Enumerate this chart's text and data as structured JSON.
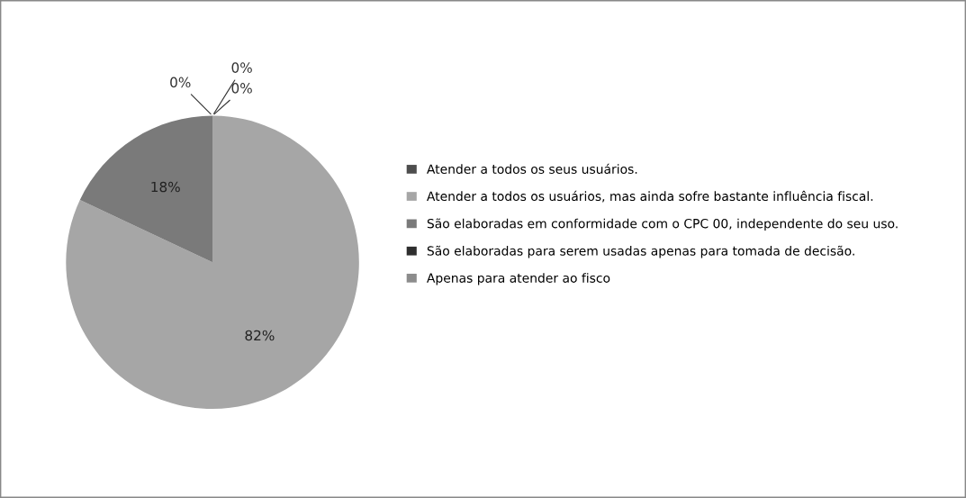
{
  "chart_data": {
    "type": "pie",
    "categories": [
      "Atender a todos os seus usuários.",
      "Atender a todos os usuários, mas ainda sofre bastante influência fiscal.",
      "São elaboradas em conformidade com o CPC 00, independente do seu uso.",
      "São elaboradas para serem usadas apenas para tomada de decisão.",
      "Apenas para atender ao fisco"
    ],
    "values": [
      0,
      82,
      18,
      0,
      0
    ],
    "colors": [
      "#4d4d4d",
      "#a6a6a6",
      "#7a7a7a",
      "#2e2e2e",
      "#8c8c8c"
    ],
    "value_labels": [
      "0%",
      "82%",
      "18%",
      "0%",
      "0%"
    ],
    "legend": "right"
  }
}
